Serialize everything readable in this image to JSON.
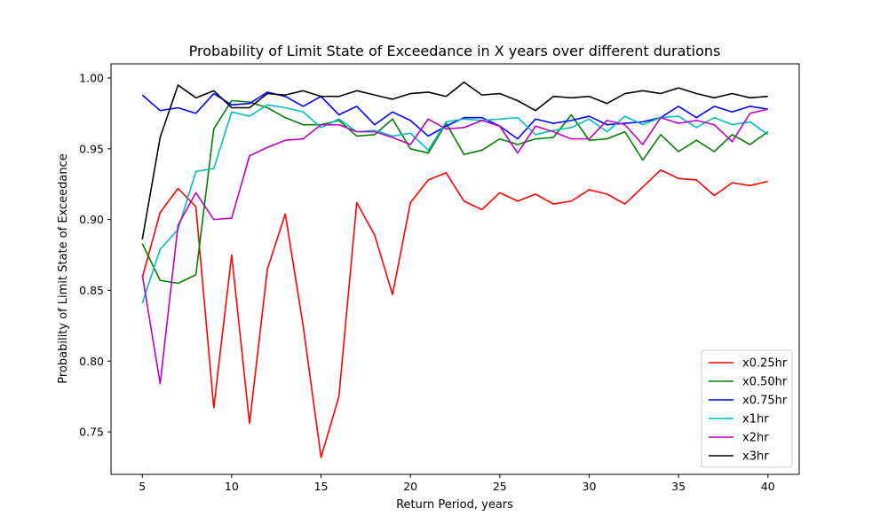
{
  "chart_data": {
    "type": "line",
    "title": "Probability of Limit State of Exceedance in X years over different durations",
    "xlabel": "Return Period, years",
    "ylabel": "Probability of Limit State of Exceedance",
    "xlim": [
      3.25,
      41.75
    ],
    "ylim": [
      0.72,
      1.01
    ],
    "xticks": [
      5,
      10,
      15,
      20,
      25,
      30,
      35,
      40
    ],
    "xtick_labels": [
      "5",
      "10",
      "15",
      "20",
      "25",
      "30",
      "35",
      "40"
    ],
    "yticks": [
      0.75,
      0.8,
      0.85,
      0.9,
      0.95,
      1.0
    ],
    "ytick_labels": [
      "0.75",
      "0.80",
      "0.85",
      "0.90",
      "0.95",
      "1.00"
    ],
    "grid": false,
    "legend_position": "lower-right",
    "x": [
      5,
      6,
      7,
      8,
      9,
      10,
      11,
      12,
      13,
      14,
      15,
      16,
      17,
      18,
      19,
      20,
      21,
      22,
      23,
      24,
      25,
      26,
      27,
      28,
      29,
      30,
      31,
      32,
      33,
      34,
      35,
      36,
      37,
      38,
      39,
      40
    ],
    "series": [
      {
        "name": "x0.25hr",
        "color": "#ff0000",
        "values": [
          0.859,
          0.905,
          0.922,
          0.909,
          0.767,
          0.875,
          0.756,
          0.865,
          0.904,
          0.825,
          0.732,
          0.775,
          0.912,
          0.889,
          0.847,
          0.912,
          0.928,
          0.933,
          0.913,
          0.907,
          0.919,
          0.913,
          0.918,
          0.911,
          0.913,
          0.921,
          0.918,
          0.911,
          0.923,
          0.935,
          0.929,
          0.928,
          0.917,
          0.926,
          0.924,
          0.927
        ]
      },
      {
        "name": "x0.50hr",
        "color": "#008000",
        "values": [
          0.883,
          0.857,
          0.855,
          0.861,
          0.964,
          0.984,
          0.983,
          0.979,
          0.972,
          0.967,
          0.967,
          0.97,
          0.959,
          0.96,
          0.971,
          0.95,
          0.947,
          0.968,
          0.946,
          0.949,
          0.957,
          0.953,
          0.957,
          0.958,
          0.974,
          0.956,
          0.957,
          0.962,
          0.942,
          0.96,
          0.948,
          0.956,
          0.948,
          0.96,
          0.953,
          0.962
        ]
      },
      {
        "name": "x0.75hr",
        "color": "#0000ff",
        "values": [
          0.988,
          0.977,
          0.979,
          0.975,
          0.989,
          0.981,
          0.982,
          0.99,
          0.987,
          0.98,
          0.987,
          0.974,
          0.98,
          0.967,
          0.976,
          0.97,
          0.959,
          0.966,
          0.972,
          0.972,
          0.966,
          0.957,
          0.971,
          0.968,
          0.97,
          0.973,
          0.967,
          0.968,
          0.969,
          0.972,
          0.98,
          0.972,
          0.98,
          0.976,
          0.98,
          0.978
        ]
      },
      {
        "name": "x1hr",
        "color": "#00bfbf",
        "values": [
          0.841,
          0.879,
          0.893,
          0.934,
          0.936,
          0.976,
          0.973,
          0.981,
          0.979,
          0.976,
          0.965,
          0.971,
          0.962,
          0.963,
          0.959,
          0.961,
          0.949,
          0.969,
          0.971,
          0.97,
          0.971,
          0.972,
          0.96,
          0.963,
          0.965,
          0.971,
          0.962,
          0.973,
          0.967,
          0.972,
          0.973,
          0.965,
          0.972,
          0.967,
          0.969,
          0.96
        ]
      },
      {
        "name": "x2hr",
        "color": "#bf00bf",
        "values": [
          0.861,
          0.784,
          0.896,
          0.919,
          0.9,
          0.901,
          0.945,
          0.951,
          0.956,
          0.957,
          0.967,
          0.967,
          0.962,
          0.962,
          0.958,
          0.953,
          0.971,
          0.964,
          0.965,
          0.97,
          0.966,
          0.947,
          0.966,
          0.962,
          0.957,
          0.957,
          0.97,
          0.967,
          0.953,
          0.972,
          0.968,
          0.97,
          0.967,
          0.955,
          0.975,
          0.978
        ]
      },
      {
        "name": "x3hr",
        "color": "#000000",
        "values": [
          0.886,
          0.958,
          0.995,
          0.986,
          0.991,
          0.979,
          0.979,
          0.989,
          0.988,
          0.991,
          0.987,
          0.987,
          0.991,
          0.988,
          0.985,
          0.989,
          0.99,
          0.987,
          0.997,
          0.988,
          0.989,
          0.984,
          0.977,
          0.987,
          0.986,
          0.987,
          0.982,
          0.989,
          0.991,
          0.989,
          0.993,
          0.989,
          0.986,
          0.989,
          0.986,
          0.987
        ]
      }
    ]
  }
}
